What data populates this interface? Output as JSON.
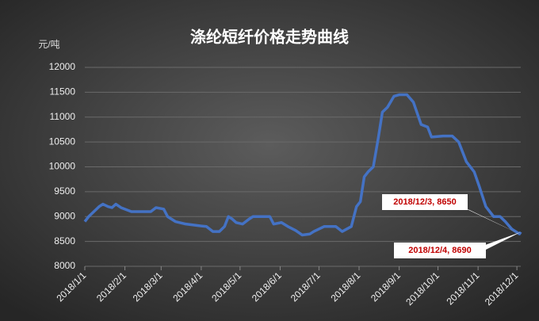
{
  "chart_data": {
    "type": "line",
    "title": "涤纶短纤价格走势曲线",
    "y_unit": "元/吨",
    "x": [
      "2018/1/1",
      "2018/1/4",
      "2018/1/8",
      "2018/1/12",
      "2018/1/15",
      "2018/1/19",
      "2018/1/22",
      "2018/1/25",
      "2018/1/29",
      "2018/2/1",
      "2018/2/6",
      "2018/2/12",
      "2018/2/21",
      "2018/2/25",
      "2018/3/3",
      "2018/3/6",
      "2018/3/12",
      "2018/3/20",
      "2018/3/29",
      "2018/4/5",
      "2018/4/10",
      "2018/4/15",
      "2018/4/19",
      "2018/4/22",
      "2018/4/25",
      "2018/4/28",
      "2018/5/3",
      "2018/5/8",
      "2018/5/11",
      "2018/5/24",
      "2018/5/27",
      "2018/6/2",
      "2018/6/7",
      "2018/6/13",
      "2018/6/18",
      "2018/6/24",
      "2018/6/27",
      "2018/7/5",
      "2018/7/14",
      "2018/7/19",
      "2018/7/26",
      "2018/7/30",
      "2018/8/2",
      "2018/8/5",
      "2018/8/8",
      "2018/8/12",
      "2018/8/16",
      "2018/8/19",
      "2018/8/23",
      "2018/8/28",
      "2018/9/1",
      "2018/9/7",
      "2018/9/12",
      "2018/9/18",
      "2018/9/23",
      "2018/9/26",
      "2018/10/5",
      "2018/10/12",
      "2018/10/17",
      "2018/10/23",
      "2018/10/29",
      "2018/11/2",
      "2018/11/7",
      "2018/11/13",
      "2018/11/18",
      "2018/11/22",
      "2018/11/27",
      "2018/12/3",
      "2018/12/4"
    ],
    "series": [
      {
        "color": "#4472c4",
        "values": [
          8900,
          9000,
          9100,
          9200,
          9250,
          9200,
          9180,
          9250,
          9180,
          9150,
          9100,
          9100,
          9100,
          9180,
          9150,
          9000,
          8900,
          8850,
          8820,
          8800,
          8700,
          8700,
          8800,
          9000,
          8950,
          8880,
          8850,
          8950,
          9000,
          9000,
          8850,
          8880,
          8800,
          8720,
          8630,
          8650,
          8700,
          8800,
          8800,
          8700,
          8800,
          9200,
          9300,
          9800,
          9900,
          10000,
          10600,
          11100,
          11200,
          11420,
          11450,
          11450,
          11300,
          10850,
          10800,
          10600,
          10620,
          10620,
          10500,
          10100,
          9900,
          9600,
          9200,
          9000,
          9000,
          8900,
          8750,
          8650,
          8690
        ],
        "value_labels": [
          null,
          null,
          null,
          null,
          null,
          null,
          null,
          null,
          null,
          null,
          null,
          null,
          null,
          null,
          null,
          null,
          null,
          null,
          null,
          null,
          null,
          null,
          null,
          null,
          null,
          null,
          null,
          null,
          null,
          null,
          null,
          null,
          null,
          null,
          null,
          null,
          null,
          null,
          null,
          null,
          null,
          null,
          null,
          null,
          null,
          null,
          null,
          null,
          null,
          null,
          null,
          null,
          null,
          null,
          null,
          null,
          null,
          null,
          null,
          null,
          null,
          null,
          null,
          null,
          null,
          null,
          null,
          "2018/12/3, 8650",
          "2018/12/4, 8690"
        ]
      }
    ],
    "xlim": [
      "2018/1/1",
      "2018/12/4"
    ],
    "xticks": [
      "2018/1/1",
      "2018/2/1",
      "2018/3/1",
      "2018/4/1",
      "2018/5/1",
      "2018/6/1",
      "2018/7/1",
      "2018/8/1",
      "2018/9/1",
      "2018/10/1",
      "2018/11/1",
      "2018/12/1"
    ],
    "ylim": [
      8000,
      12000
    ],
    "yticks": [
      8000,
      8500,
      9000,
      9500,
      10000,
      10500,
      11000,
      11500,
      12000
    ],
    "grid": true
  }
}
